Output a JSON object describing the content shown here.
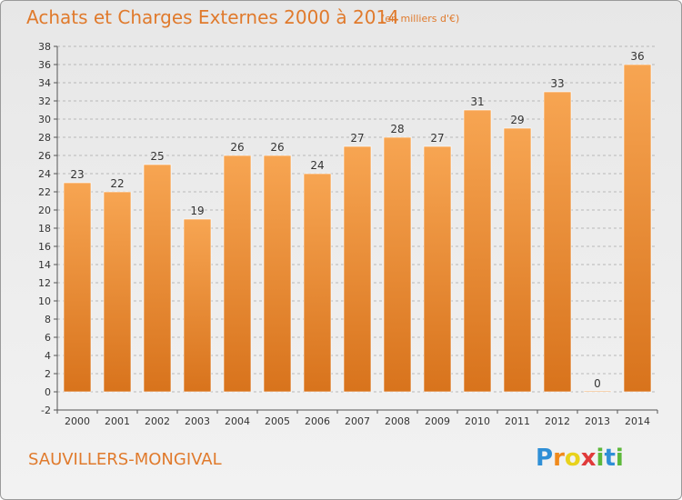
{
  "header": {
    "title": "Achats et Charges Externes 2000 à 2014",
    "subtitle": "(en milliers d'€)"
  },
  "footer": {
    "commune": "SAUVILLERS-MONGIVAL",
    "logo": [
      "P",
      "r",
      "o",
      "x",
      "i",
      "t",
      "i"
    ]
  },
  "colors": {
    "bar_top": "#f7a552",
    "bar_bottom": "#d8731c",
    "accent": "#e07a2c"
  },
  "chart_data": {
    "type": "bar",
    "title": "Achats et Charges Externes 2000 à 2014",
    "subtitle": "(en milliers d'€)",
    "categories": [
      "2000",
      "2001",
      "2002",
      "2003",
      "2004",
      "2005",
      "2006",
      "2007",
      "2008",
      "2009",
      "2010",
      "2011",
      "2012",
      "2013",
      "2014"
    ],
    "values": [
      23,
      22,
      25,
      19,
      26,
      26,
      24,
      27,
      28,
      27,
      31,
      29,
      33,
      0,
      36
    ],
    "ylim": [
      -2,
      38
    ],
    "yticks": [
      -2,
      0,
      2,
      4,
      6,
      8,
      10,
      12,
      14,
      16,
      18,
      20,
      22,
      24,
      26,
      28,
      30,
      32,
      34,
      36,
      38
    ],
    "grid": "horizontal-dashed",
    "legend": "none"
  }
}
